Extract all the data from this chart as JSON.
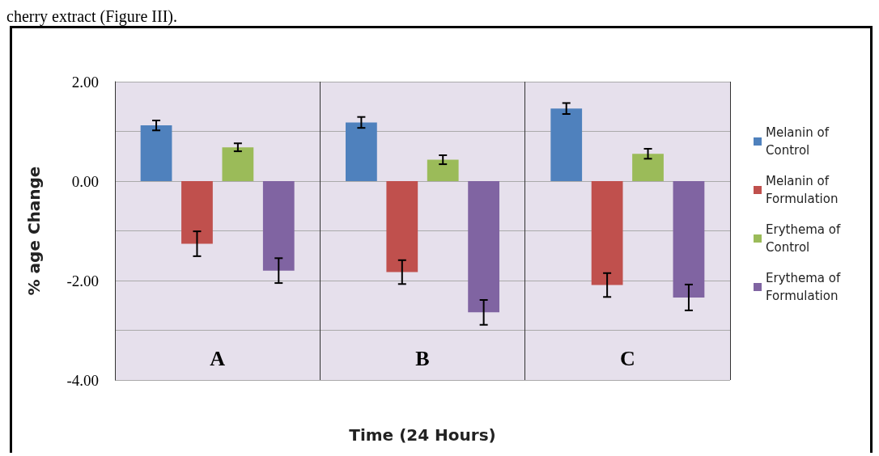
{
  "chart_data": {
    "type": "bar",
    "xlabel": "Time (24 Hours)",
    "ylabel": "% age Change",
    "annotations": [
      "cherry extract (Figure III)."
    ],
    "categories": [
      "A",
      "B",
      "C"
    ],
    "series": [
      {
        "name": "Melanin of Control",
        "color": "#4f81bd",
        "values": [
          1.12,
          1.18,
          1.46
        ],
        "errors": [
          0.1,
          0.11,
          0.11
        ]
      },
      {
        "name": "Melanin of Formulation",
        "color": "#c0504d",
        "values": [
          -1.26,
          -1.83,
          -2.09
        ],
        "errors": [
          0.25,
          0.24,
          0.24
        ]
      },
      {
        "name": "Erythema of Control",
        "color": "#9bbb59",
        "values": [
          0.68,
          0.43,
          0.55
        ],
        "errors": [
          0.08,
          0.09,
          0.1
        ]
      },
      {
        "name": "Erythema of Formulation",
        "color": "#8064a2",
        "values": [
          -1.8,
          -2.64,
          -2.34
        ],
        "errors": [
          0.25,
          0.25,
          0.26
        ]
      }
    ],
    "ylim": [
      -4,
      2
    ],
    "yticks": [
      {
        "value": -4,
        "label": "-4.00"
      },
      {
        "value": -3,
        "label": null
      },
      {
        "value": -2,
        "label": "-2.00"
      },
      {
        "value": -1,
        "label": null
      },
      {
        "value": 0,
        "label": "0.00"
      },
      {
        "value": 1,
        "label": null
      },
      {
        "value": 2,
        "label": "2.00"
      }
    ],
    "grid": true,
    "legend": "right"
  }
}
